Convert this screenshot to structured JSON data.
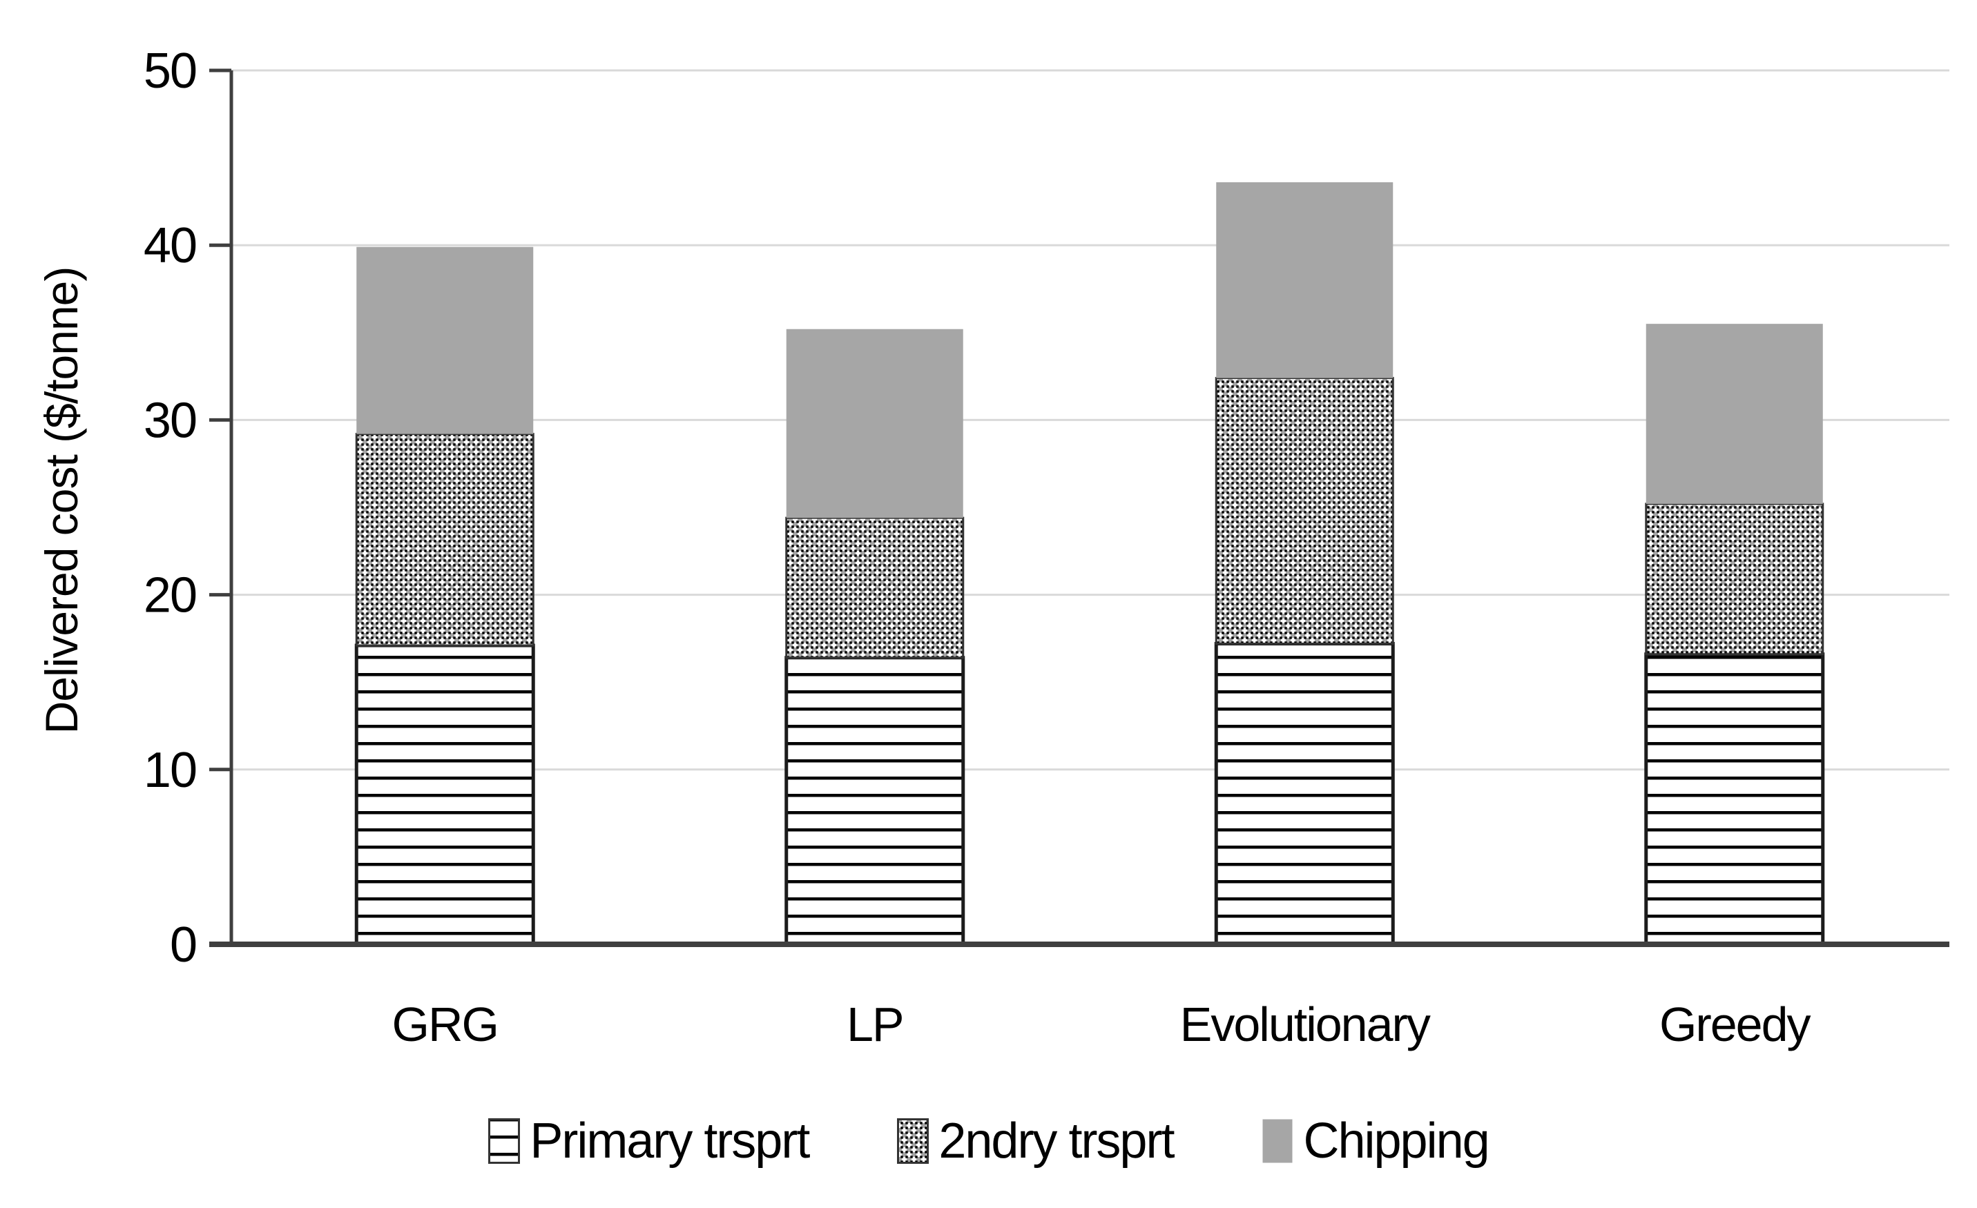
{
  "figure": {
    "background": "#ffffff"
  },
  "colors": {
    "chipping_gray": "#a6a6a6",
    "pattern_gray": "#a6a6a6",
    "pattern_ink": "#000000",
    "axis_line": "#3f3f3f",
    "gridline": "#d9d9d9",
    "text": "#000000",
    "background": "#ffffff"
  },
  "chart_data": {
    "type": "bar",
    "stacked": true,
    "title": "",
    "xlabel": "",
    "ylabel": "Delivered cost ($/tonne)",
    "ylim": [
      0,
      50
    ],
    "yticks": [
      0,
      10,
      20,
      30,
      40,
      50
    ],
    "grid": "horizontal-light",
    "legend_position": "bottom",
    "categories": [
      "GRG",
      "LP",
      "Evolutionary",
      "Greedy"
    ],
    "series": [
      {
        "name": "Primary trsprt",
        "pattern": "horizontal-lines",
        "values": [
          17.1,
          16.4,
          17.2,
          16.6
        ]
      },
      {
        "name": "2ndry trsprt",
        "pattern": "checker-weave",
        "values": [
          12.1,
          8.0,
          15.2,
          8.6
        ]
      },
      {
        "name": "Chipping",
        "pattern": "solid-gray",
        "values": [
          10.7,
          10.8,
          11.2,
          10.3
        ]
      }
    ],
    "stack_totals": [
      39.9,
      35.2,
      43.6,
      35.5
    ]
  }
}
